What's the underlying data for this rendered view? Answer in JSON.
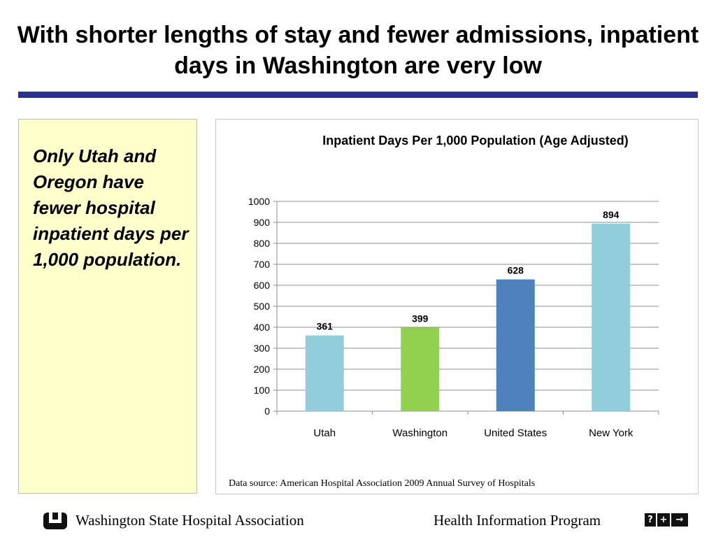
{
  "slide": {
    "title": "With shorter lengths of stay and fewer admissions, inpatient days in Washington are very low",
    "note": "Only Utah and Oregon have fewer hospital inpatient days per 1,000 population."
  },
  "chart_data": {
    "type": "bar",
    "title": "Inpatient Days Per 1,000 Population (Age Adjusted)",
    "categories": [
      "Utah",
      "Washington",
      "United States",
      "New York"
    ],
    "values": [
      361,
      399,
      628,
      894
    ],
    "data_labels": [
      "361",
      "399",
      "628",
      "894"
    ],
    "bar_colors": [
      "#92cddc",
      "#92d050",
      "#4f81bd",
      "#92cddc"
    ],
    "ylim": [
      0,
      1000
    ],
    "yticks": [
      0,
      100,
      200,
      300,
      400,
      500,
      600,
      700,
      800,
      900,
      1000
    ],
    "grid": true,
    "legend": "none",
    "xlabel": "",
    "ylabel": ""
  },
  "source": "Data source:  American Hospital Association 2009 Annual Survey of Hospitals",
  "footer": {
    "organization": "Washington State Hospital Association",
    "program": "Health Information Program",
    "icons": [
      "question-icon",
      "plus-icon",
      "arrow-right-icon"
    ],
    "icon_glyphs": [
      "?",
      "+",
      "→"
    ]
  },
  "colors": {
    "title_rule": "#2b2f8f",
    "note_background": "#ffffcc"
  }
}
